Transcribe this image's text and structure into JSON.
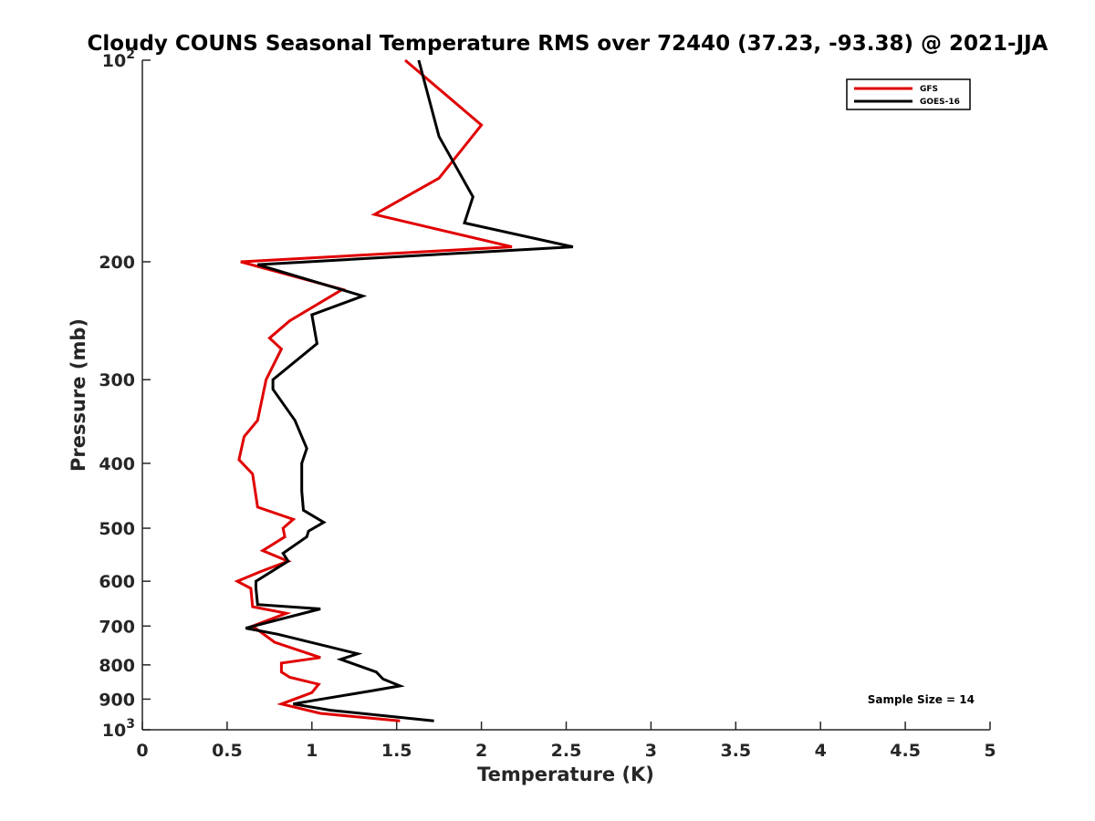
{
  "chart_data": {
    "type": "line",
    "title": "Cloudy COUNS Seasonal Temperature RMS over 72440 (37.23, -93.38) @ 2021-JJA",
    "xlabel": "Temperature (K)",
    "ylabel": "Pressure (mb)",
    "xlim": [
      0,
      5
    ],
    "ylim": [
      100,
      1000
    ],
    "y_scale": "log",
    "y_reversed": true,
    "xticks": [
      0,
      0.5,
      1,
      1.5,
      2,
      2.5,
      3,
      3.5,
      4,
      4.5,
      5
    ],
    "xtick_labels": [
      "0",
      "0.5",
      "1",
      "1.5",
      "2",
      "2.5",
      "3",
      "3.5",
      "4",
      "4.5",
      "5"
    ],
    "yticks": [
      {
        "value": 100,
        "base": "10",
        "exp": "2"
      },
      {
        "value": 200,
        "label": "200"
      },
      {
        "value": 300,
        "label": "300"
      },
      {
        "value": 400,
        "label": "400"
      },
      {
        "value": 500,
        "label": "500"
      },
      {
        "value": 600,
        "label": "600"
      },
      {
        "value": 700,
        "label": "700"
      },
      {
        "value": 800,
        "label": "800"
      },
      {
        "value": 900,
        "label": "900"
      },
      {
        "value": 1000,
        "base": "10",
        "exp": "3"
      }
    ],
    "legend_position": "top-right",
    "grid": false,
    "annotation": "Sample Size = 14",
    "series": [
      {
        "name": "GFS",
        "color": "#e00000",
        "points": [
          [
            1.55,
            100
          ],
          [
            2.0,
            125
          ],
          [
            1.75,
            150
          ],
          [
            1.37,
            170
          ],
          [
            2.18,
            190
          ],
          [
            0.58,
            200
          ],
          [
            1.18,
            220
          ],
          [
            0.87,
            245
          ],
          [
            0.75,
            260
          ],
          [
            0.82,
            270
          ],
          [
            0.73,
            300
          ],
          [
            0.68,
            345
          ],
          [
            0.6,
            365
          ],
          [
            0.57,
            395
          ],
          [
            0.65,
            415
          ],
          [
            0.68,
            465
          ],
          [
            0.89,
            485
          ],
          [
            0.83,
            500
          ],
          [
            0.84,
            515
          ],
          [
            0.71,
            540
          ],
          [
            0.86,
            560
          ],
          [
            0.7,
            580
          ],
          [
            0.56,
            600
          ],
          [
            0.64,
            615
          ],
          [
            0.65,
            655
          ],
          [
            0.85,
            670
          ],
          [
            0.65,
            700
          ],
          [
            0.78,
            740
          ],
          [
            1.05,
            780
          ],
          [
            0.82,
            795
          ],
          [
            0.82,
            820
          ],
          [
            0.87,
            835
          ],
          [
            1.04,
            855
          ],
          [
            1.0,
            880
          ],
          [
            0.82,
            915
          ],
          [
            1.05,
            945
          ],
          [
            1.52,
            970
          ]
        ]
      },
      {
        "name": "GOES-16",
        "color": "#000000",
        "points": [
          [
            1.63,
            100
          ],
          [
            1.75,
            130
          ],
          [
            1.95,
            160
          ],
          [
            1.9,
            175
          ],
          [
            2.54,
            190
          ],
          [
            0.68,
            202
          ],
          [
            1.3,
            225
          ],
          [
            1.0,
            240
          ],
          [
            1.03,
            265
          ],
          [
            0.77,
            300
          ],
          [
            0.77,
            310
          ],
          [
            0.9,
            345
          ],
          [
            0.97,
            380
          ],
          [
            0.94,
            400
          ],
          [
            0.94,
            440
          ],
          [
            0.95,
            470
          ],
          [
            1.07,
            490
          ],
          [
            0.98,
            505
          ],
          [
            0.97,
            515
          ],
          [
            0.83,
            545
          ],
          [
            0.86,
            560
          ],
          [
            0.67,
            600
          ],
          [
            0.67,
            615
          ],
          [
            0.68,
            650
          ],
          [
            1.05,
            660
          ],
          [
            0.61,
            705
          ],
          [
            0.8,
            720
          ],
          [
            1.27,
            770
          ],
          [
            1.17,
            785
          ],
          [
            1.38,
            820
          ],
          [
            1.42,
            840
          ],
          [
            1.52,
            860
          ],
          [
            1.35,
            875
          ],
          [
            1.0,
            905
          ],
          [
            0.89,
            915
          ],
          [
            1.11,
            935
          ],
          [
            1.72,
            970
          ]
        ]
      }
    ]
  }
}
